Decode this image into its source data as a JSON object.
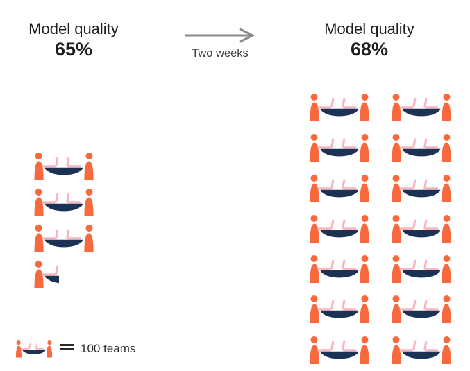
{
  "left_panel": {
    "title": "Model quality",
    "value": "65%",
    "team_icons_full": 3,
    "team_icons_partial": 1
  },
  "transition": {
    "label": "Two weeks"
  },
  "right_panel": {
    "title": "Model quality",
    "value": "68%",
    "team_icons_full": 14,
    "grid": {
      "rows": 7,
      "cols": 2
    }
  },
  "legend": {
    "equals": "=",
    "label": "100 teams",
    "unit_per_icon": 100
  },
  "icons": {
    "team_icon": "two-people-seated-at-table-with-two-laptops",
    "arrow_icon": "right-arrow"
  },
  "colors": {
    "person_orange": "#F8693E",
    "table_navy": "#1C3254",
    "laptop_pink": "#F8B7C0",
    "arrow_gray": "#8A8A8A",
    "title_text": "#1E1E1E",
    "caption_text": "#3C3C3C"
  },
  "chart_data": {
    "type": "bar",
    "subtype": "pictograph",
    "unit": "teams",
    "unit_per_icon": 100,
    "categories": [
      "Model quality 65%",
      "Model quality 68%"
    ],
    "icons_shown": [
      3.5,
      14
    ],
    "values": [
      350,
      1400
    ],
    "annotation": "Two weeks",
    "legend": "1 team icon = 100 teams",
    "grid": false,
    "legend_position": "bottom-left"
  }
}
